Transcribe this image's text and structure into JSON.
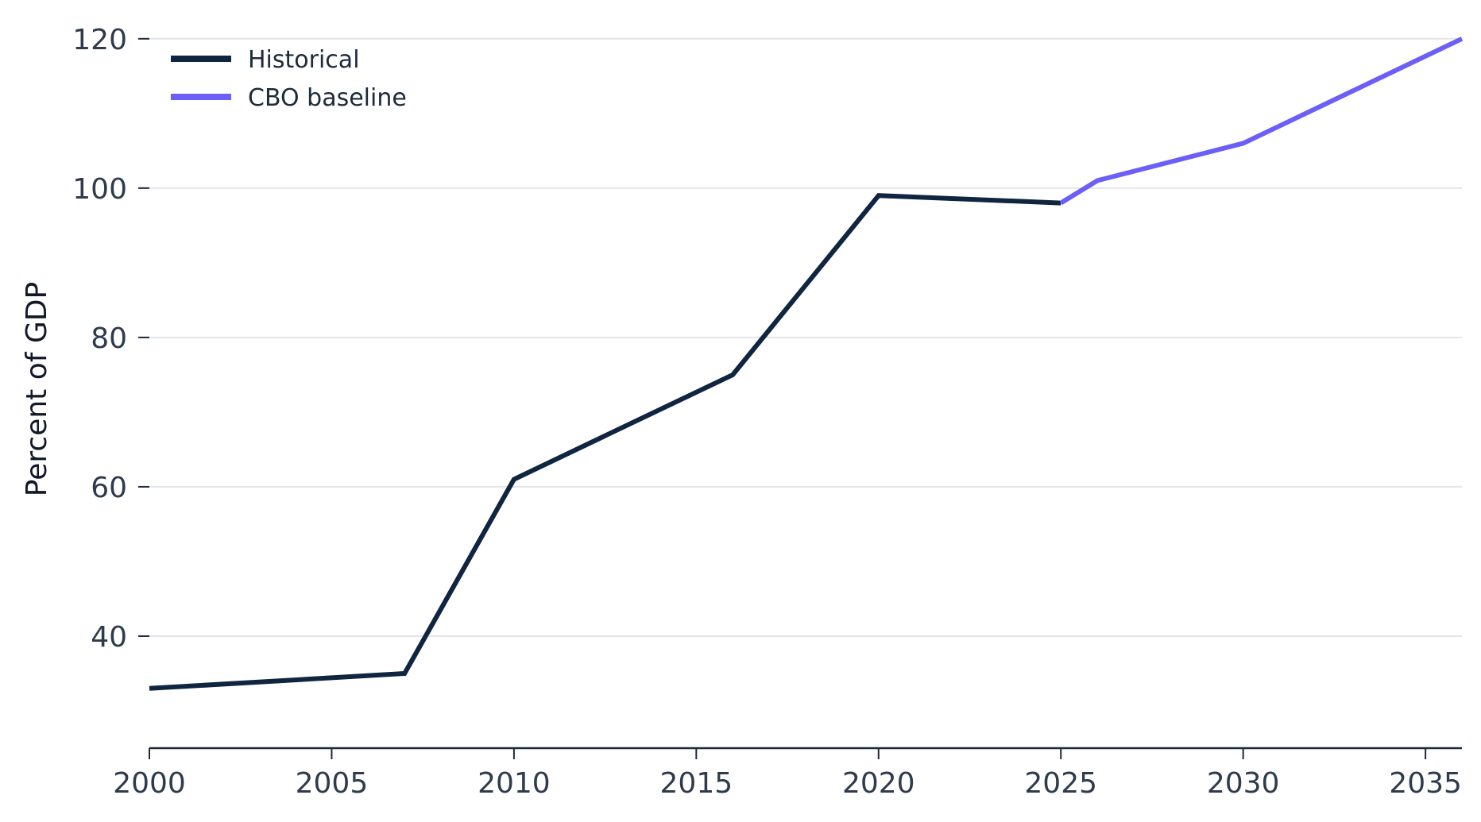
{
  "chart_data": {
    "type": "line",
    "title": "",
    "xlabel": "",
    "ylabel": "Percent of GDP",
    "xlim": [
      2000,
      2036
    ],
    "ylim": [
      25,
      122
    ],
    "xticks": [
      2000,
      2005,
      2010,
      2015,
      2020,
      2025,
      2030,
      2035
    ],
    "yticks": [
      40,
      60,
      80,
      100,
      120
    ],
    "grid": "horizontal",
    "legend_position": "top-left",
    "series": [
      {
        "name": "Historical",
        "color": "#0f2540",
        "points": [
          [
            2000,
            33
          ],
          [
            2007,
            35
          ],
          [
            2010,
            61
          ],
          [
            2016,
            75
          ],
          [
            2020,
            99
          ],
          [
            2025,
            98
          ]
        ]
      },
      {
        "name": "CBO baseline",
        "color": "#6b5ff7",
        "points": [
          [
            2025,
            98
          ],
          [
            2026,
            101
          ],
          [
            2030,
            106
          ],
          [
            2036,
            120
          ]
        ]
      }
    ]
  }
}
